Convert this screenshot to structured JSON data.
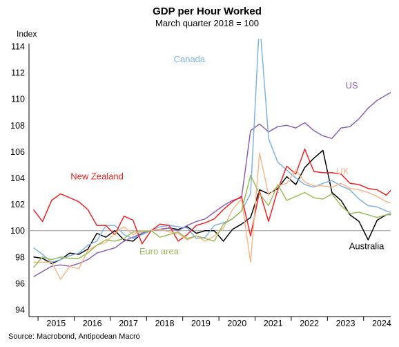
{
  "chart_data": {
    "type": "line",
    "title": "GDP per Hour Worked",
    "subtitle": "March quarter 2018 = 100",
    "ylabel": "Index",
    "xlabel": "",
    "ylim": [
      94,
      114
    ],
    "yticks": [
      94,
      96,
      98,
      100,
      102,
      104,
      106,
      108,
      110,
      112,
      114
    ],
    "x_start": 2014.875,
    "x_step": 0.25,
    "xlim": [
      2014.75,
      2024.75
    ],
    "xticks": [
      "2015",
      "2016",
      "2017",
      "2018",
      "2019",
      "2020",
      "2021",
      "2022",
      "2023",
      "2024"
    ],
    "reference_line": 100,
    "grid": false,
    "legend": "direct labels",
    "source": "Source: Macrobond, Antipodean Macro",
    "series": [
      {
        "name": "Australia",
        "color": "#000000",
        "values": [
          98.0,
          97.9,
          97.5,
          97.8,
          98.3,
          98.2,
          98.6,
          99.8,
          99.5,
          100.0,
          99.3,
          99.2,
          99.8,
          100.0,
          100.1,
          100.2,
          100.1,
          100.3,
          99.8,
          100.0,
          100.0,
          99.2,
          100.1,
          100.5,
          101.0,
          103.1,
          102.8,
          103.2,
          104.1,
          103.5,
          104.8,
          105.5,
          106.1,
          102.9,
          102.3,
          101.2,
          100.7,
          99.3,
          100.8,
          101.2,
          101.3,
          100.6,
          100.1,
          100.0
        ],
        "label_x": 2023.6,
        "label_y": 98.6
      },
      {
        "name": "US",
        "color": "#8a62b3",
        "values": [
          96.5,
          96.9,
          97.3,
          97.4,
          97.3,
          97.5,
          97.8,
          98.3,
          98.5,
          98.7,
          99.2,
          99.5,
          99.8,
          100.0,
          100.1,
          100.2,
          100.0,
          100.4,
          100.7,
          100.9,
          101.4,
          101.9,
          102.3,
          102.5,
          107.6,
          108.1,
          107.5,
          107.9,
          108.0,
          107.8,
          108.2,
          107.6,
          107.2,
          107.0,
          107.8,
          107.9,
          108.5,
          109.3,
          109.9,
          110.3,
          110.7,
          110.9,
          111.1,
          111.4
        ],
        "label_x": 2023.5,
        "label_y": 110.8
      },
      {
        "name": "Canada",
        "color": "#7fb2e5",
        "values": [
          98.7,
          98.2,
          97.6,
          97.8,
          98.1,
          98.3,
          98.9,
          99.2,
          100.4,
          100.4,
          99.7,
          99.4,
          99.7,
          100.0,
          100.3,
          100.4,
          100.3,
          100.2,
          99.4,
          99.5,
          100.4,
          100.6,
          100.9,
          101.5,
          102.8,
          116.0,
          107.0,
          105.2,
          104.6,
          104.0,
          103.5,
          103.3,
          103.6,
          103.8,
          103.4,
          103.1,
          102.4,
          101.9,
          101.8,
          101.5,
          101.3,
          101.1,
          100.9,
          101.3
        ],
        "label_x": 2018.75,
        "label_y": 112.8
      },
      {
        "name": "New Zealand",
        "color": "#ee2222",
        "values": [
          101.6,
          100.7,
          102.3,
          102.8,
          102.5,
          102.2,
          101.6,
          100.4,
          100.4,
          99.7,
          101.1,
          100.8,
          99.0,
          100.0,
          100.5,
          100.4,
          99.2,
          99.7,
          100.4,
          100.6,
          100.9,
          101.6,
          102.2,
          102.6,
          99.6,
          103.0,
          100.7,
          103.1,
          104.9,
          104.3,
          106.2,
          104.5,
          104.4,
          104.4,
          104.3,
          103.6,
          103.5,
          103.2,
          103.1,
          102.7,
          103.4,
          103.8,
          103.0
        ],
        "label_x": 2015.9,
        "label_y": 103.9
      },
      {
        "name": "UK",
        "color": "#f4b889",
        "values": [
          97.6,
          97.6,
          97.6,
          96.3,
          97.3,
          97.1,
          98.5,
          98.9,
          99.1,
          99.8,
          100.3,
          99.7,
          100.0,
          100.0,
          100.1,
          99.9,
          99.8,
          99.3,
          99.6,
          99.2,
          99.6,
          100.2,
          101.6,
          102.4,
          97.6,
          105.9,
          102.7,
          103.4,
          103.6,
          104.6,
          103.7,
          103.4,
          103.4,
          103.3,
          103.6,
          103.2,
          103.1,
          102.9,
          102.6,
          102.2,
          102.0,
          101.9,
          101.0,
          101.6
        ],
        "label_x": 2023.25,
        "label_y": 104.3
      },
      {
        "name": "Euro area",
        "color": "#99bb55",
        "values": [
          97.2,
          98.0,
          97.8,
          98.0,
          97.9,
          97.9,
          98.3,
          98.9,
          99.3,
          99.2,
          99.4,
          99.9,
          99.9,
          100.0,
          99.5,
          99.7,
          99.9,
          99.4,
          99.6,
          99.4,
          99.2,
          100.5,
          100.9,
          101.5,
          104.2,
          102.8,
          101.9,
          103.5,
          102.3,
          102.6,
          102.9,
          102.5,
          102.4,
          102.8,
          101.9,
          101.3,
          101.4,
          101.2,
          101.0,
          101.2,
          101.2,
          101.0,
          101.5
        ],
        "label_x": 2017.8,
        "label_y": 98.2
      }
    ]
  }
}
